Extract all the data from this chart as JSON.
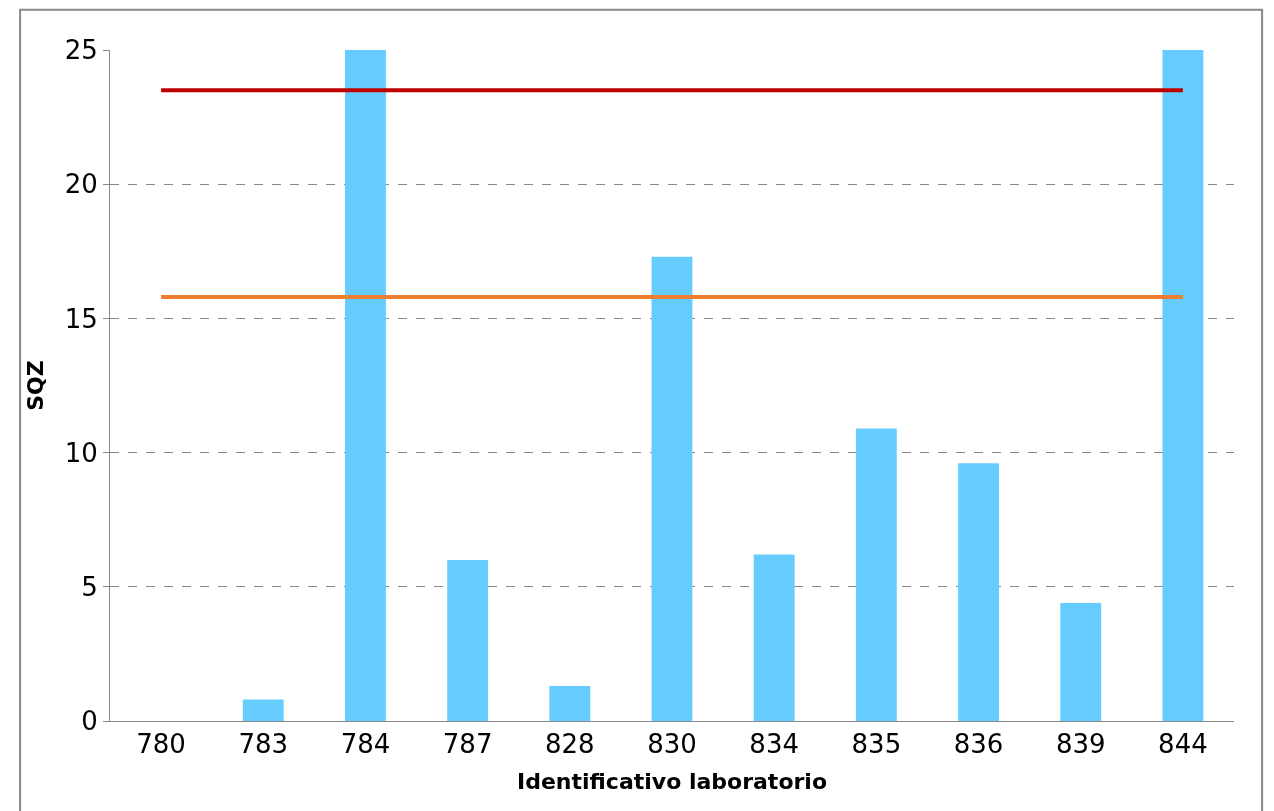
{
  "chart_data": {
    "type": "bar",
    "xlabel": "Identificativo laboratorio",
    "ylabel": "SQZ",
    "categories": [
      "780",
      "783",
      "784",
      "787",
      "828",
      "830",
      "834",
      "835",
      "836",
      "839",
      "844"
    ],
    "values": [
      0,
      0.8,
      25,
      6.0,
      1.3,
      17.3,
      6.2,
      10.9,
      9.6,
      4.4,
      25
    ],
    "color": "#66ccff",
    "ylim": [
      0,
      25
    ],
    "yticks": [
      0,
      5,
      10,
      15,
      20,
      25
    ],
    "grid": "y",
    "ref_lines": [
      {
        "axis": "y",
        "value": 23.5,
        "color": "#c00000",
        "line_style": "solid"
      },
      {
        "axis": "y",
        "value": 15.8,
        "color": "#ed7d31",
        "line_style": "solid"
      }
    ]
  }
}
